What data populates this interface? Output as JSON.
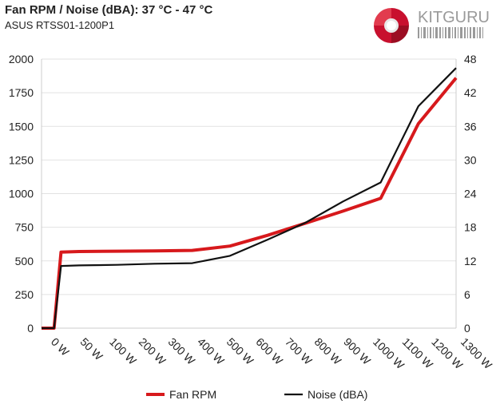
{
  "title": "Fan RPM / Noise (dBA): 37 °C - 47 °C",
  "subtitle": "ASUS RTSS01-1200P1",
  "logo": {
    "text": "KITGURU",
    "icon": "kitguru-swirl-logo"
  },
  "colors": {
    "fan_rpm": "#d7191c",
    "noise": "#111111",
    "grid": "#e2e2e2",
    "logo_red": "#c8102e"
  },
  "chart_data": {
    "type": "line",
    "categories": [
      "0 W",
      "50 W",
      "100 W",
      "200 W",
      "300 W",
      "400 W",
      "500 W",
      "600 W",
      "700 W",
      "800 W",
      "900 W",
      "1000 W",
      "1100 W",
      "1200 W",
      "1300 W"
    ],
    "series": [
      {
        "name": "Fan RPM",
        "axis": "left",
        "color": "#d7191c",
        "points": [
          [
            0,
            0
          ],
          [
            40,
            0
          ],
          [
            62,
            565
          ],
          [
            120,
            570
          ],
          [
            240,
            572
          ],
          [
            360,
            574
          ],
          [
            480,
            578
          ],
          [
            600,
            610
          ],
          [
            720,
            690
          ],
          [
            840,
            780
          ],
          [
            960,
            870
          ],
          [
            1080,
            965
          ],
          [
            1200,
            1520
          ],
          [
            1320,
            1860
          ]
        ]
      },
      {
        "name": "Noise (dBA)",
        "axis": "right",
        "color": "#111111",
        "points": [
          [
            0,
            0
          ],
          [
            40,
            0
          ],
          [
            62,
            11.1
          ],
          [
            120,
            11.2
          ],
          [
            240,
            11.3
          ],
          [
            360,
            11.5
          ],
          [
            480,
            11.6
          ],
          [
            600,
            12.9
          ],
          [
            720,
            15.8
          ],
          [
            840,
            18.8
          ],
          [
            960,
            22.6
          ],
          [
            1080,
            26.0
          ],
          [
            1200,
            39.6
          ],
          [
            1320,
            46.4
          ]
        ]
      }
    ],
    "left_axis": {
      "ylim": [
        0,
        2000
      ],
      "ticks": [
        0,
        250,
        500,
        750,
        1000,
        1250,
        1500,
        1750,
        2000
      ]
    },
    "right_axis": {
      "ylim": [
        0,
        48
      ],
      "ticks": [
        0,
        6,
        12,
        18,
        24,
        30,
        36,
        42,
        48
      ]
    },
    "xlim": [
      0,
      1320
    ],
    "legend": {
      "placement": "bottom",
      "entries": [
        "Fan RPM",
        "Noise (dBA)"
      ]
    },
    "grid": "horizontal"
  }
}
